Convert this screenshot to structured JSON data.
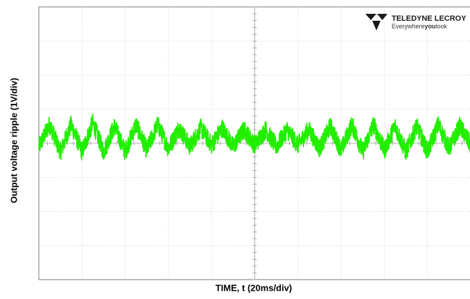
{
  "chart_data": {
    "type": "line",
    "title": "",
    "xlabel": "TIME, t (20ms/div)",
    "ylabel": "Output voltage ripple (1V/div)",
    "x_divisions": 10,
    "y_divisions": 8,
    "xlim": [
      0,
      200
    ],
    "ylim": [
      -4,
      4
    ],
    "grid": true,
    "series": [
      {
        "color": "#22ee00",
        "waveform": "triangular ripple with high-frequency noise",
        "x": [
          0,
          5,
          10,
          15,
          20,
          25,
          30,
          35,
          40,
          45,
          50,
          55,
          60,
          65,
          70,
          75,
          80,
          85,
          90,
          95,
          100,
          105,
          110,
          115,
          120,
          125,
          130,
          135,
          140,
          145,
          150,
          155,
          160,
          165,
          170,
          175,
          180,
          185,
          190,
          195,
          200
        ],
        "y": [
          -0.1,
          0.55,
          -0.25,
          0.55,
          -0.25,
          0.6,
          -0.25,
          0.5,
          -0.25,
          0.55,
          -0.2,
          0.55,
          -0.15,
          0.45,
          -0.1,
          0.45,
          -0.05,
          0.45,
          -0.1,
          0.4,
          -0.05,
          0.4,
          -0.1,
          0.4,
          -0.05,
          0.4,
          -0.15,
          0.5,
          -0.2,
          0.55,
          -0.25,
          0.55,
          -0.2,
          0.5,
          -0.25,
          0.5,
          -0.25,
          0.55,
          -0.15,
          0.5,
          -0.05
        ]
      }
    ]
  },
  "brand": {
    "name": "TELEDYNE LECROY",
    "tagline_pre": "Everywhere",
    "tagline_bold": "you",
    "tagline_post": "look",
    "logo_color": "#1a1a1a"
  }
}
